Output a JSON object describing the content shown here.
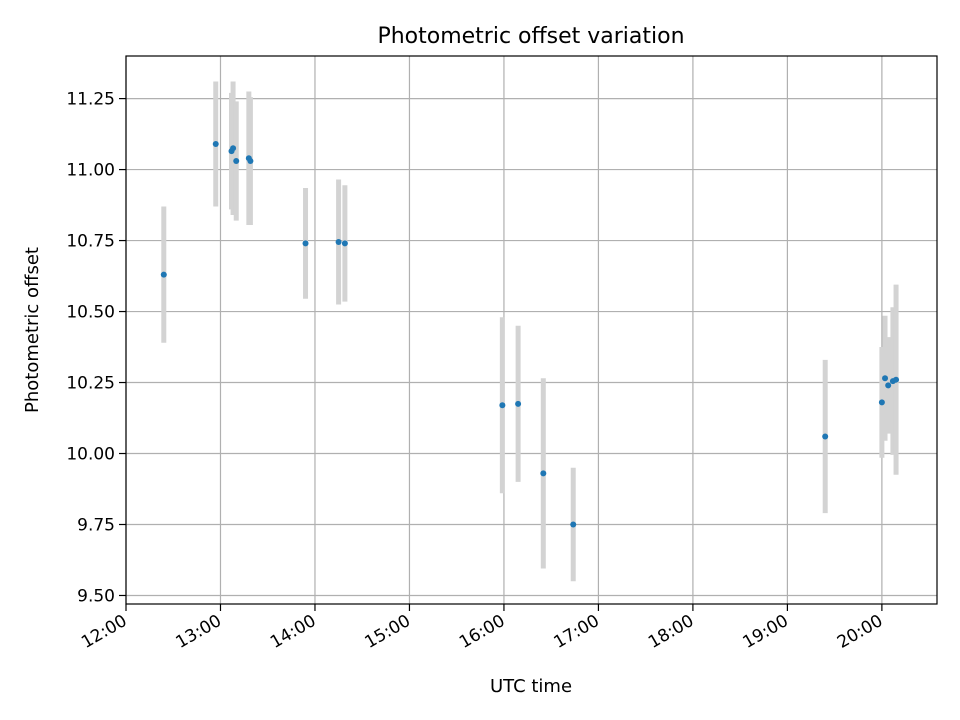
{
  "chart_data": {
    "type": "scatter",
    "title": "Photometric offset variation",
    "xlabel": "UTC time",
    "ylabel": "Photometric offset",
    "x_unit": "UTC hours",
    "xlim": [
      "12:00",
      "20:35"
    ],
    "ylim": [
      9.47,
      11.4
    ],
    "grid": true,
    "legend": null,
    "x_ticks": [
      "12:00",
      "13:00",
      "14:00",
      "15:00",
      "16:00",
      "17:00",
      "18:00",
      "19:00",
      "20:00"
    ],
    "y_ticks": [
      "9.50",
      "9.75",
      "10.00",
      "10.25",
      "10.50",
      "10.75",
      "11.00",
      "11.25"
    ],
    "colors": {
      "point": "#1f77b4",
      "errorbar": "#d3d3d3",
      "grid": "#b0b0b0"
    },
    "points": [
      {
        "x": "12:24",
        "y": 10.63,
        "err": 0.24
      },
      {
        "x": "12:57",
        "y": 11.09,
        "err": 0.22
      },
      {
        "x": "13:07",
        "y": 11.065,
        "err": 0.205
      },
      {
        "x": "13:08",
        "y": 11.075,
        "err": 0.235
      },
      {
        "x": "13:10",
        "y": 11.03,
        "err": 0.21
      },
      {
        "x": "13:18",
        "y": 11.04,
        "err": 0.235
      },
      {
        "x": "13:19",
        "y": 11.03,
        "err": 0.225
      },
      {
        "x": "13:54",
        "y": 10.74,
        "err": 0.195
      },
      {
        "x": "14:15",
        "y": 10.745,
        "err": 0.22
      },
      {
        "x": "14:19",
        "y": 10.74,
        "err": 0.205
      },
      {
        "x": "15:59",
        "y": 10.17,
        "err": 0.31
      },
      {
        "x": "16:09",
        "y": 10.175,
        "err": 0.275
      },
      {
        "x": "16:25",
        "y": 9.93,
        "err": 0.335
      },
      {
        "x": "16:44",
        "y": 9.75,
        "err": 0.2
      },
      {
        "x": "19:24",
        "y": 10.06,
        "err": 0.27
      },
      {
        "x": "20:00",
        "y": 10.18,
        "err": 0.195
      },
      {
        "x": "20:02",
        "y": 10.265,
        "err": 0.22
      },
      {
        "x": "20:04",
        "y": 10.24,
        "err": 0.17
      },
      {
        "x": "20:07",
        "y": 10.255,
        "err": 0.26
      },
      {
        "x": "20:09",
        "y": 10.26,
        "err": 0.335
      }
    ]
  }
}
